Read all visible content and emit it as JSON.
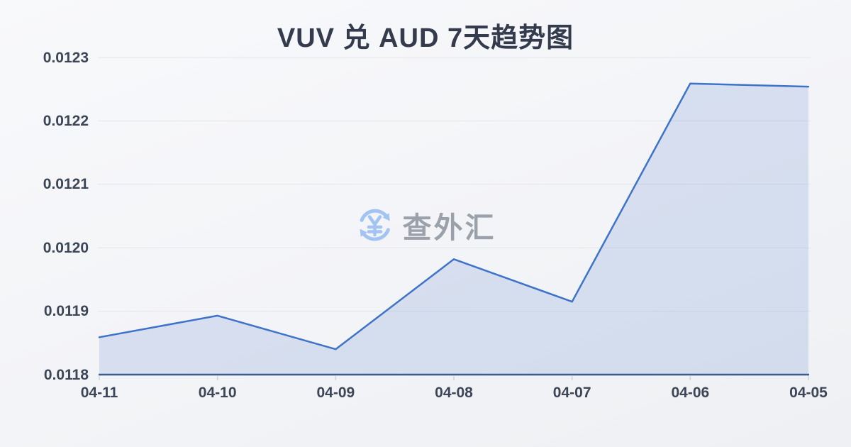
{
  "page": {
    "title": "VUV 兑 AUD 7天趋势图"
  },
  "watermark": {
    "icon": "currency-exchange-icon",
    "text": "查外汇"
  },
  "chart_data": {
    "type": "area",
    "title": "VUV 兑 AUD 7天趋势图",
    "categories": [
      "04-11",
      "04-10",
      "04-09",
      "04-08",
      "04-07",
      "04-06",
      "04-05"
    ],
    "values": [
      0.011859,
      0.011893,
      0.01184,
      0.011982,
      0.011915,
      0.012259,
      0.012254
    ],
    "xlabel": "",
    "ylabel": "",
    "ylim": [
      0.0118,
      0.0123
    ],
    "ytick_values": [
      0.0118,
      0.0119,
      0.012,
      0.0121,
      0.0122,
      0.0123
    ],
    "ytick_labels": [
      "0.0118",
      "0.0119",
      "0.0120",
      "0.0121",
      "0.0122",
      "0.0123"
    ],
    "grid": true,
    "legend_position": "none",
    "colors": {
      "line": "#3e73c9",
      "fill": "rgba(62,115,201,0.16)",
      "axis_line": "#3a5c8e",
      "grid_line": "#e2e5ea",
      "tick_mark": "#cfd3d9",
      "axis_text": "#3c4657",
      "title_text": "#333b4d",
      "watermark_icon": "#a3c4f3",
      "watermark_text": "#9aa1ab"
    }
  }
}
